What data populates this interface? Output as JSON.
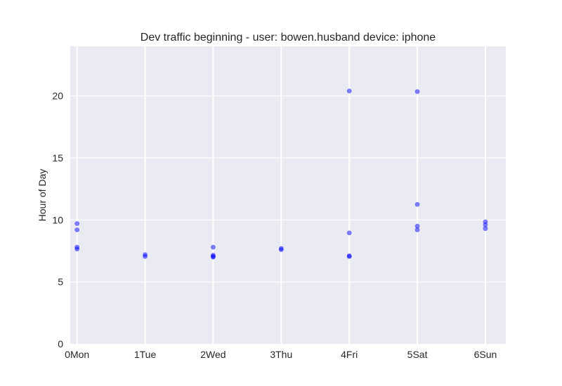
{
  "chart_data": {
    "type": "scatter",
    "title": "Dev traffic beginning - user: bowen.husband device: iphone",
    "xlabel": "",
    "ylabel": "Hour of Day",
    "categories": [
      "0Mon",
      "1Tue",
      "2Wed",
      "3Thu",
      "4Fri",
      "5Sat",
      "6Sun"
    ],
    "xlim": [
      -0.1,
      6.3
    ],
    "ylim": [
      0,
      24
    ],
    "yticks": [
      0,
      5,
      10,
      15,
      20
    ],
    "grid": true,
    "marker_color": "#0000ff",
    "background_color": "#eaeaf2",
    "points": [
      {
        "x": 0,
        "y": 9.7
      },
      {
        "x": 0,
        "y": 9.2
      },
      {
        "x": 0,
        "y": 7.8
      },
      {
        "x": 0,
        "y": 7.65
      },
      {
        "x": 1,
        "y": 7.2
      },
      {
        "x": 1,
        "y": 7.05
      },
      {
        "x": 2,
        "y": 7.8
      },
      {
        "x": 2,
        "y": 7.15
      },
      {
        "x": 2,
        "y": 7.0
      },
      {
        "x": 2,
        "y": 7.05
      },
      {
        "x": 3,
        "y": 7.7
      },
      {
        "x": 3,
        "y": 7.6
      },
      {
        "x": 4,
        "y": 20.4
      },
      {
        "x": 4,
        "y": 8.95
      },
      {
        "x": 4,
        "y": 7.1
      },
      {
        "x": 4,
        "y": 7.05
      },
      {
        "x": 5,
        "y": 20.35
      },
      {
        "x": 5,
        "y": 11.25
      },
      {
        "x": 5,
        "y": 9.5
      },
      {
        "x": 5,
        "y": 9.2
      },
      {
        "x": 6,
        "y": 9.85
      },
      {
        "x": 6,
        "y": 9.6
      },
      {
        "x": 6,
        "y": 9.3
      }
    ]
  }
}
